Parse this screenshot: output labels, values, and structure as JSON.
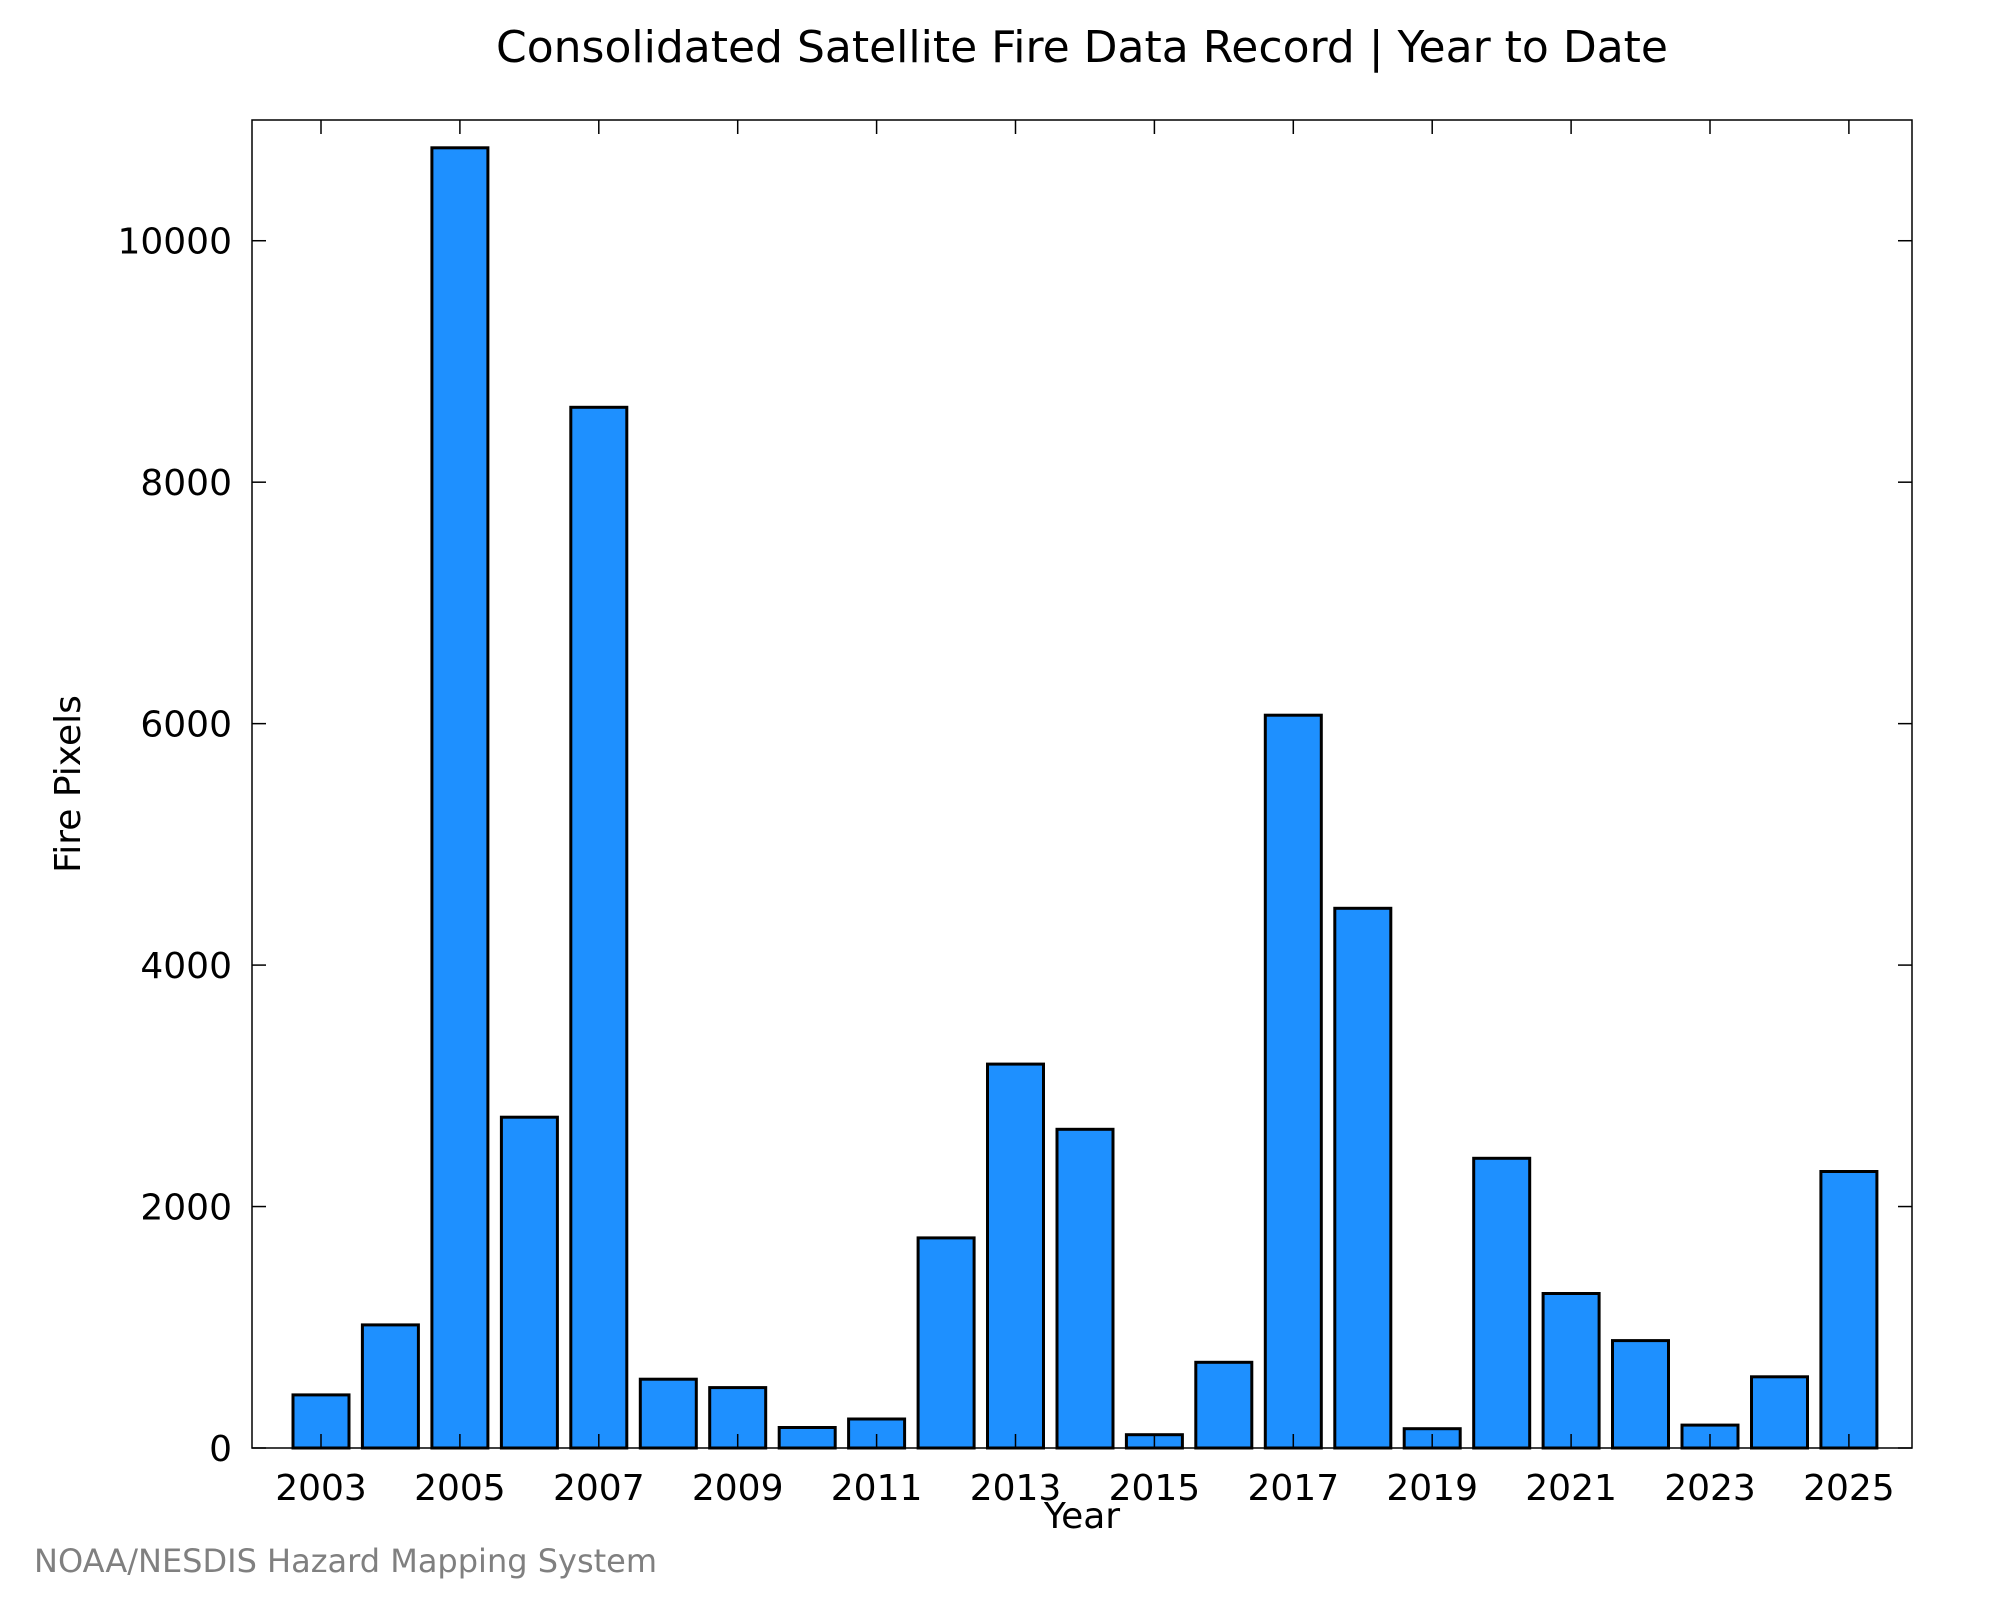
{
  "chart_data": {
    "type": "bar",
    "title": "Consolidated Satellite Fire Data Record | Year to Date",
    "xlabel": "Year",
    "ylabel": "Fire Pixels",
    "categories": [
      "2003",
      "2004",
      "2005",
      "2006",
      "2007",
      "2008",
      "2009",
      "2010",
      "2011",
      "2012",
      "2013",
      "2014",
      "2015",
      "2016",
      "2017",
      "2018",
      "2019",
      "2020",
      "2021",
      "2022",
      "2023",
      "2024",
      "2025"
    ],
    "values": [
      440,
      1020,
      10770,
      2740,
      8620,
      570,
      500,
      170,
      240,
      1740,
      3180,
      2640,
      110,
      710,
      6070,
      4470,
      160,
      2400,
      1280,
      890,
      190,
      590,
      2290
    ],
    "x_tick_labels": [
      "2003",
      "2005",
      "2007",
      "2009",
      "2011",
      "2013",
      "2015",
      "2017",
      "2019",
      "2021",
      "2023",
      "2025"
    ],
    "y_ticks": [
      0,
      2000,
      4000,
      6000,
      8000,
      10000
    ],
    "ylim": [
      0,
      11000
    ],
    "grid": false,
    "legend": "none",
    "bar_color": "#1e90ff",
    "bar_edge_color": "#000000",
    "credit": "NOAA/NESDIS Hazard Mapping System"
  }
}
